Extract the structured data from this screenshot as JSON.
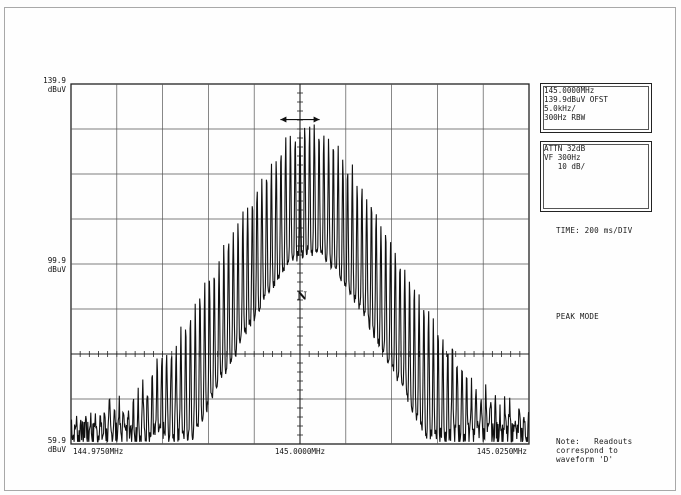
{
  "chart_data": {
    "type": "line",
    "title": "",
    "xlabel": "",
    "ylabel": "dBuV",
    "x_ticks": [
      "144.9750MHz",
      "145.0000MHz",
      "145.0250MHz"
    ],
    "xlim": [
      144.975,
      145.025
    ],
    "y_ticks": [
      {
        "value": 139.9,
        "label": "139.9",
        "unit": "dBuV"
      },
      {
        "value": 99.9,
        "label": "99.9",
        "unit": "dBuV"
      },
      {
        "value": 59.9,
        "label": "59.9",
        "unit": "dBuV"
      }
    ],
    "ylim": [
      59.9,
      139.9
    ],
    "grid": true,
    "grid_divisions": {
      "x": 10,
      "y": 8
    },
    "legend": "none",
    "marker_label": "N",
    "line_color": "#111111",
    "series": [
      {
        "x": [
          144.975,
          144.97686,
          144.97872,
          144.98058,
          144.98244,
          144.9843,
          144.98616,
          144.98802,
          144.98988,
          144.99174,
          144.9936,
          144.99546,
          144.99732,
          144.99918,
          145.00104,
          145.0029,
          145.00476,
          145.00662,
          145.00848,
          145.01034,
          145.0122,
          145.01406,
          145.01592,
          145.01778,
          145.01964,
          145.0215,
          145.02336,
          145.025
        ],
        "values": [
          65,
          66,
          67,
          69,
          72,
          76,
          82,
          89,
          96,
          104,
          111,
          118,
          124,
          129,
          131,
          129,
          124,
          118,
          111,
          104,
          96,
          89,
          82,
          76,
          72,
          69,
          67,
          65
        ]
      }
    ]
  },
  "readout_top": {
    "lines": [
      "145.0000MHz",
      "139.9dBuV OFST",
      "5.0kHz/",
      "300Hz RBW"
    ]
  },
  "readout_bottom": {
    "lines": [
      "ATTN 32dB",
      "VF 300Hz",
      "   10 dB/"
    ]
  },
  "time_label": "TIME: 200 ms/DIV",
  "mode_label": "PEAK MODE",
  "note_lines": [
    "Note:   Readouts",
    "correspond to",
    "waveform 'D'"
  ]
}
